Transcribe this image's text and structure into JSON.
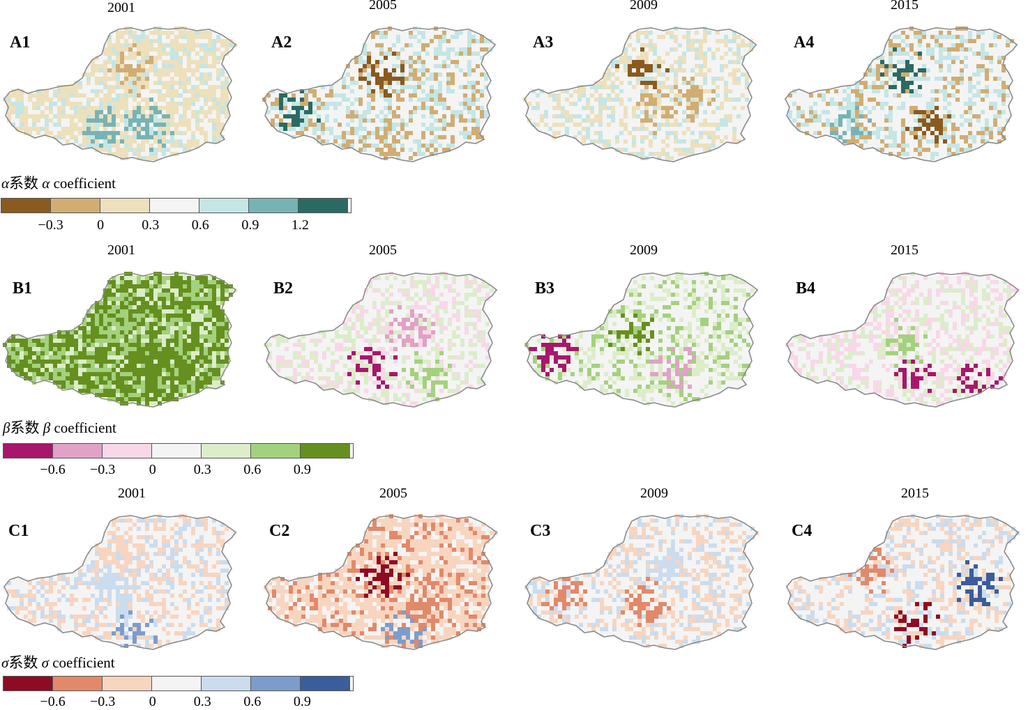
{
  "rows": [
    {
      "id": "alpha",
      "panels": [
        {
          "label": "A1",
          "year": "2001"
        },
        {
          "label": "A2",
          "year": "2005"
        },
        {
          "label": "A3",
          "year": "2009"
        },
        {
          "label": "A4",
          "year": "2015"
        }
      ],
      "legend": {
        "symbol": "α",
        "title_zh": "系数",
        "title_en": "coefficient",
        "colors": [
          "#8a5a1e",
          "#d1ad73",
          "#ede0bc",
          "#f4f4f4",
          "#c4e6e5",
          "#78b3b4",
          "#2b6a63"
        ],
        "ticks": [
          "−0.3",
          "0",
          "0.3",
          "0.6",
          "0.9",
          "1.2"
        ]
      }
    },
    {
      "id": "beta",
      "panels": [
        {
          "label": "B1",
          "year": "2001"
        },
        {
          "label": "B2",
          "year": "2005"
        },
        {
          "label": "B3",
          "year": "2009"
        },
        {
          "label": "B4",
          "year": "2015"
        }
      ],
      "legend": {
        "symbol": "β",
        "title_zh": "系数",
        "title_en": "coefficient",
        "colors": [
          "#a8176b",
          "#e0a2c6",
          "#f8d8e8",
          "#f4f4f4",
          "#dcedc9",
          "#a4d17e",
          "#65901f"
        ],
        "ticks": [
          "−0.6",
          "−0.3",
          "0",
          "0.3",
          "0.6",
          "0.9"
        ]
      }
    },
    {
      "id": "sigma",
      "panels": [
        {
          "label": "C1",
          "year": "2001"
        },
        {
          "label": "C2",
          "year": "2005"
        },
        {
          "label": "C3",
          "year": "2009"
        },
        {
          "label": "C4",
          "year": "2015"
        }
      ],
      "legend": {
        "symbol": "σ",
        "title_zh": "系数",
        "title_en": "coefficient",
        "colors": [
          "#8e0c23",
          "#e2896a",
          "#f8d5bf",
          "#f4f4f4",
          "#cbdcee",
          "#7c9dcb",
          "#3a5d9c"
        ],
        "ticks": [
          "−0.6",
          "−0.3",
          "0",
          "0.3",
          "0.6",
          "0.9"
        ]
      }
    }
  ],
  "maps": {
    "A1": {
      "dominant": [
        2,
        3,
        4
      ],
      "hot": [
        [
          0.55,
          0.3,
          1
        ],
        [
          0.42,
          0.72,
          5
        ],
        [
          0.62,
          0.72,
          5
        ]
      ]
    },
    "A2": {
      "dominant": [
        3,
        4,
        1
      ],
      "hot": [
        [
          0.5,
          0.35,
          0
        ],
        [
          0.12,
          0.62,
          6
        ],
        [
          0.5,
          0.85,
          1
        ]
      ]
    },
    "A3": {
      "dominant": [
        3,
        2,
        4
      ],
      "hot": [
        [
          0.5,
          0.3,
          0
        ],
        [
          0.55,
          0.6,
          1
        ],
        [
          0.72,
          0.5,
          1
        ]
      ]
    },
    "A4": {
      "dominant": [
        3,
        4,
        1
      ],
      "hot": [
        [
          0.5,
          0.3,
          6
        ],
        [
          0.25,
          0.75,
          5
        ],
        [
          0.62,
          0.75,
          0
        ]
      ]
    },
    "B1": {
      "dominant": [
        6,
        5,
        4
      ],
      "hot": [
        [
          0.55,
          0.35,
          6
        ],
        [
          0.62,
          0.7,
          6
        ],
        [
          0.5,
          0.4,
          5
        ]
      ]
    },
    "B2": {
      "dominant": [
        3,
        4,
        2
      ],
      "hot": [
        [
          0.45,
          0.7,
          0
        ],
        [
          0.62,
          0.4,
          1
        ],
        [
          0.7,
          0.75,
          5
        ]
      ]
    },
    "B3": {
      "dominant": [
        3,
        4,
        5
      ],
      "hot": [
        [
          0.45,
          0.45,
          6
        ],
        [
          0.62,
          0.7,
          1
        ],
        [
          0.1,
          0.6,
          0
        ]
      ]
    },
    "B4": {
      "dominant": [
        3,
        2,
        4
      ],
      "hot": [
        [
          0.5,
          0.5,
          5
        ],
        [
          0.55,
          0.78,
          0
        ],
        [
          0.82,
          0.82,
          0
        ]
      ]
    },
    "C1": {
      "dominant": [
        3,
        2,
        4
      ],
      "hot": [
        [
          0.5,
          0.25,
          2
        ],
        [
          0.45,
          0.55,
          4
        ],
        [
          0.55,
          0.9,
          5
        ]
      ]
    },
    "C2": {
      "dominant": [
        2,
        3,
        1
      ],
      "hot": [
        [
          0.5,
          0.45,
          0
        ],
        [
          0.7,
          0.65,
          1
        ],
        [
          0.6,
          0.88,
          5
        ]
      ]
    },
    "C3": {
      "dominant": [
        3,
        2,
        4
      ],
      "hot": [
        [
          0.5,
          0.65,
          1
        ],
        [
          0.15,
          0.6,
          1
        ],
        [
          0.62,
          0.35,
          4
        ]
      ]
    },
    "C4": {
      "dominant": [
        3,
        2,
        4
      ],
      "hot": [
        [
          0.82,
          0.5,
          6
        ],
        [
          0.55,
          0.82,
          0
        ],
        [
          0.35,
          0.4,
          1
        ]
      ]
    }
  }
}
